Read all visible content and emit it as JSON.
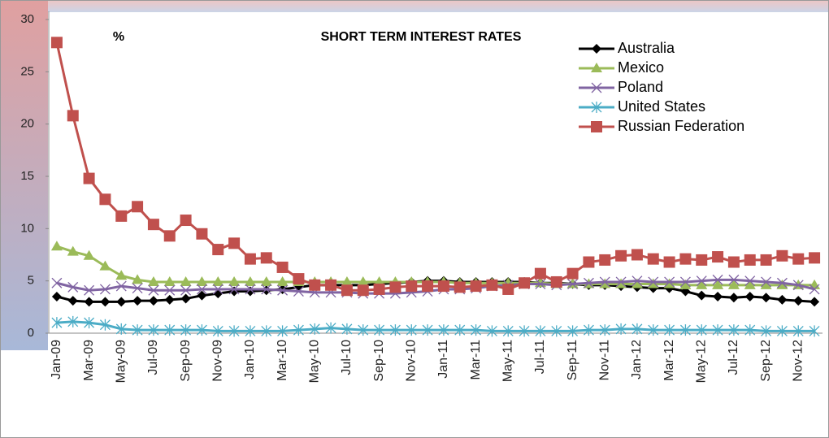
{
  "chart_data": {
    "type": "line",
    "title": "SHORT TERM INTEREST RATES",
    "ylabel": "%",
    "categories": [
      "Jan-09",
      null,
      "Mar-09",
      null,
      "May-09",
      null,
      "Jul-09",
      null,
      "Sep-09",
      null,
      "Nov-09",
      null,
      "Jan-10",
      null,
      "Mar-10",
      null,
      "May-10",
      null,
      "Jul-10",
      null,
      "Sep-10",
      null,
      "Nov-10",
      null,
      "Jan-11",
      null,
      "Mar-11",
      null,
      "May-11",
      null,
      "Jul-11",
      null,
      "Sep-11",
      null,
      "Nov-11",
      null,
      "Jan-12",
      null,
      "Mar-12",
      null,
      "May-12",
      null,
      "Jul-12",
      null,
      "Sep-12",
      null,
      "Nov-12",
      null
    ],
    "ylim": [
      0,
      30
    ],
    "yticks": [
      0,
      5,
      10,
      15,
      20,
      25,
      30
    ],
    "legend": "top-right",
    "series": [
      {
        "name": "Australia",
        "color": "#000000",
        "marker": "diamond",
        "values": [
          3.5,
          3.1,
          3.0,
          3.0,
          3.0,
          3.1,
          3.1,
          3.2,
          3.3,
          3.6,
          3.8,
          4.0,
          4.0,
          4.1,
          4.2,
          4.4,
          4.6,
          4.6,
          4.6,
          4.6,
          4.7,
          4.8,
          4.9,
          5.0,
          5.0,
          4.9,
          4.9,
          4.9,
          4.9,
          4.9,
          4.8,
          4.8,
          4.7,
          4.6,
          4.6,
          4.5,
          4.4,
          4.3,
          4.3,
          4.0,
          3.6,
          3.5,
          3.4,
          3.5,
          3.4,
          3.2,
          3.1,
          3.0
        ]
      },
      {
        "name": "Mexico",
        "color": "#9bbb59",
        "marker": "triangle",
        "values": [
          8.3,
          7.8,
          7.4,
          6.4,
          5.5,
          5.1,
          4.9,
          4.9,
          4.9,
          4.9,
          4.9,
          4.9,
          4.9,
          4.9,
          4.9,
          4.9,
          4.9,
          4.9,
          4.9,
          4.9,
          4.9,
          4.9,
          4.9,
          4.9,
          4.9,
          4.8,
          4.8,
          4.8,
          4.8,
          4.8,
          4.8,
          4.7,
          4.7,
          4.7,
          4.7,
          4.7,
          4.7,
          4.7,
          4.7,
          4.6,
          4.6,
          4.6,
          4.6,
          4.6,
          4.6,
          4.6,
          4.6,
          4.6
        ]
      },
      {
        "name": "Poland",
        "color": "#8064a2",
        "marker": "x",
        "values": [
          4.8,
          4.4,
          4.1,
          4.2,
          4.5,
          4.3,
          4.1,
          4.1,
          4.1,
          4.2,
          4.2,
          4.2,
          4.2,
          4.2,
          4.1,
          4.0,
          3.9,
          3.9,
          3.9,
          3.8,
          3.8,
          3.8,
          3.9,
          4.0,
          4.2,
          4.2,
          4.3,
          4.5,
          4.6,
          4.7,
          4.7,
          4.6,
          4.7,
          4.8,
          4.9,
          4.9,
          5.0,
          4.9,
          4.9,
          4.9,
          5.0,
          5.1,
          5.1,
          5.0,
          4.9,
          4.8,
          4.6,
          4.2
        ]
      },
      {
        "name": "United States",
        "color": "#4bacc6",
        "marker": "star",
        "values": [
          1.0,
          1.1,
          1.0,
          0.8,
          0.4,
          0.3,
          0.3,
          0.3,
          0.3,
          0.3,
          0.2,
          0.2,
          0.2,
          0.2,
          0.2,
          0.3,
          0.4,
          0.5,
          0.4,
          0.3,
          0.3,
          0.3,
          0.3,
          0.3,
          0.3,
          0.3,
          0.3,
          0.2,
          0.2,
          0.2,
          0.2,
          0.2,
          0.2,
          0.3,
          0.3,
          0.4,
          0.4,
          0.3,
          0.3,
          0.3,
          0.3,
          0.3,
          0.3,
          0.3,
          0.2,
          0.2,
          0.2,
          0.2
        ]
      },
      {
        "name": "Russian Federation",
        "color": "#c0504d",
        "marker": "square",
        "values": [
          27.8,
          20.8,
          14.8,
          12.8,
          11.2,
          12.1,
          10.4,
          9.3,
          10.8,
          9.5,
          8.0,
          8.6,
          7.1,
          7.2,
          6.3,
          5.2,
          4.6,
          4.6,
          4.1,
          4.1,
          4.2,
          4.4,
          4.5,
          4.5,
          4.5,
          4.4,
          4.5,
          4.6,
          4.2,
          4.8,
          5.7,
          4.9,
          5.7,
          6.8,
          7.0,
          7.4,
          7.5,
          7.1,
          6.8,
          7.1,
          7.0,
          7.3,
          6.8,
          7.0,
          7.0,
          7.4,
          7.1,
          7.2
        ]
      }
    ]
  }
}
